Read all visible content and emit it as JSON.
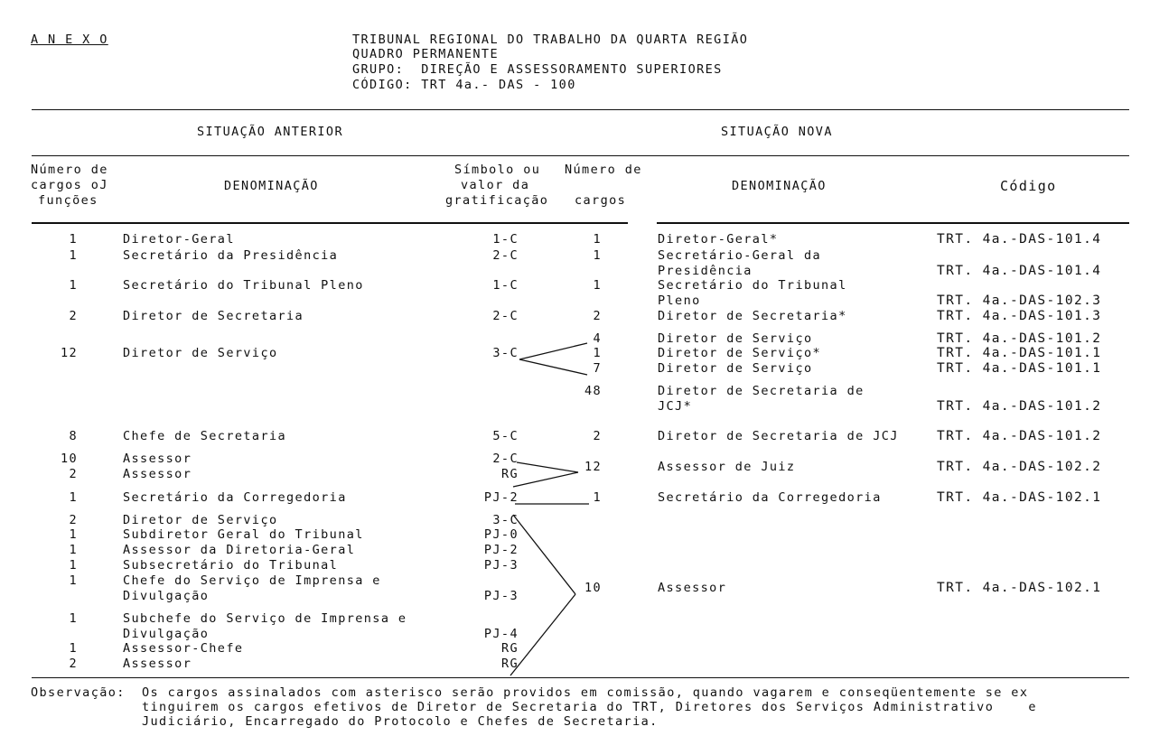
{
  "annex": "A N E X O",
  "header": {
    "line1": "TRIBUNAL REGIONAL DO TRABALHO DA QUARTA REGIÃO",
    "line2": "QUADRO PERMANENTE",
    "line3": "GRUPO:  DIREÇÃO E ASSESSORAMENTO SUPERIORES",
    "line4": "CÓDIGO: TRT 4a.- DAS - 100"
  },
  "sections": {
    "old": "SITUAÇÃO ANTERIOR",
    "new": "SITUAÇÃO NOVA"
  },
  "columns": {
    "count": [
      "Número de",
      "cargos oJ",
      "funções"
    ],
    "name": "DENOMINAÇÃO",
    "symbol": [
      "Símbolo ou",
      "valor da",
      "gratificação"
    ],
    "new_count": [
      "Número de",
      "",
      "cargos"
    ],
    "new_name": "DENOMINAÇÃO",
    "code": "Código"
  },
  "old_rows": [
    {
      "count": "1",
      "name": "Diretor-Geral",
      "symbol": "1-C"
    },
    {
      "count": "1",
      "name": "Secretário da Presidência",
      "symbol": "2-C"
    },
    {
      "count": "1",
      "name": "Secretário do Tribunal Pleno",
      "symbol": "1-C"
    },
    {
      "count": "2",
      "name": "Diretor de Secretaria",
      "symbol": "2-C"
    },
    {
      "count": "12",
      "name": "Diretor de Serviço",
      "symbol": "3-C"
    },
    {
      "count": "8",
      "name": "Chefe de Secretaria",
      "symbol": "5-C"
    },
    {
      "count": "10",
      "name": "Assessor",
      "symbol": "2-C"
    },
    {
      "count": "2",
      "name": "Assessor",
      "symbol": "RG"
    },
    {
      "count": "1",
      "name": "Secretário da Corregedoria",
      "symbol": "PJ-2"
    },
    {
      "count": "2",
      "name": "Diretor de Serviço",
      "symbol": "3-C"
    },
    {
      "count": "1",
      "name": "Subdiretor Geral do Tribunal",
      "symbol": "PJ-0"
    },
    {
      "count": "1",
      "name": "Assessor da Diretoria-Geral",
      "symbol": "PJ-2"
    },
    {
      "count": "1",
      "name": "Subsecretário do Tribunal",
      "symbol": "PJ-3"
    },
    {
      "count": "1",
      "name": "Chefe do Serviço de Imprensa e",
      "name2": "Divulgação",
      "symbol": "PJ-3"
    },
    {
      "count": "1",
      "name": "Subchefe do Serviço de Imprensa e",
      "name2": "Divulgação",
      "symbol": "PJ-4"
    },
    {
      "count": "1",
      "name": "Assessor-Chefe",
      "symbol": "RG"
    },
    {
      "count": "2",
      "name": "Assessor",
      "symbol": "RG"
    }
  ],
  "new_rows": [
    {
      "count": "1",
      "name": "Diretor-Geral*",
      "code": "TRT. 4a.-DAS-101.4"
    },
    {
      "count": "1",
      "name": "Secretário-Geral da",
      "name2": "Presidência",
      "code": "TRT. 4a.-DAS-101.4"
    },
    {
      "count": "1",
      "name": "Secretário do Tribunal",
      "name2": "Pleno",
      "code": "TRT. 4a.-DAS-102.3"
    },
    {
      "count": "2",
      "name": "Diretor de Secretaria*",
      "code": "TRT. 4a.-DAS-101.3"
    },
    {
      "count": "4",
      "name": "Diretor de Serviço",
      "code": "TRT. 4a.-DAS-101.2"
    },
    {
      "count": "1",
      "name": "Diretor de Serviço*",
      "code": "TRT. 4a.-DAS-101.1"
    },
    {
      "count": "7",
      "name": "Diretor de Serviço",
      "code": "TRT. 4a.-DAS-101.1"
    },
    {
      "count": "48",
      "name": "Diretor de Secretaria de",
      "name2": "JCJ*",
      "code": "TRT. 4a.-DAS-101.2"
    },
    {
      "count": "2",
      "name": "Diretor de Secretaria de JCJ",
      "code": "TRT. 4a.-DAS-101.2"
    },
    {
      "count": "12",
      "name": "Assessor de Juiz",
      "code": "TRT. 4a.-DAS-102.2"
    },
    {
      "count": "1",
      "name": "Secretário da Corregedoria",
      "code": "TRT. 4a.-DAS-102.1"
    },
    {
      "count": "10",
      "name": "Assessor",
      "code": "TRT. 4a.-DAS-102.1"
    }
  ],
  "note": {
    "label": "Observação:",
    "line1": "Os cargos assinalados com asterisco serão providos em comissão, quando vagarem e conseqüentemente se ex",
    "line2": "tinguirem os cargos efetivos de Diretor de Secretaria do TRT, Diretores dos Serviços Administrativo    e",
    "line3": "Judiciário, Encarregado do Protocolo e Chefes de Secretaria."
  }
}
